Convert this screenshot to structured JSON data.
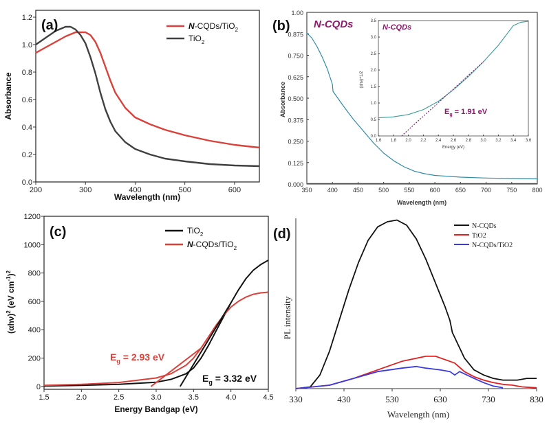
{
  "chart_data": [
    {
      "panel": "(a)",
      "type": "line",
      "xlabel": "Wavelength (nm)",
      "ylabel": "Absorbance",
      "xlim": [
        200,
        650
      ],
      "ylim": [
        0.0,
        1.25
      ],
      "xticks": [
        "200",
        "300",
        "400",
        "500",
        "600"
      ],
      "yticks": [
        "0.0",
        "0.2",
        "0.4",
        "0.6",
        "0.8",
        "1.0",
        "1.2"
      ],
      "legend": {
        "position": "top-right",
        "items": [
          {
            "label_prefix": "N",
            "label": "-CQDs/TiO",
            "sub": "2"
          },
          {
            "label_prefix": "",
            "label": "TiO",
            "sub": "2"
          }
        ]
      },
      "series": [
        {
          "name": "N-CQDs/TiO2",
          "color": "#d9413b",
          "x": [
            200,
            220,
            240,
            260,
            280,
            300,
            310,
            320,
            330,
            340,
            350,
            360,
            380,
            400,
            430,
            460,
            500,
            550,
            600,
            650
          ],
          "y": [
            0.94,
            0.98,
            1.02,
            1.06,
            1.09,
            1.09,
            1.07,
            1.02,
            0.94,
            0.84,
            0.74,
            0.65,
            0.54,
            0.47,
            0.42,
            0.38,
            0.34,
            0.3,
            0.27,
            0.25
          ]
        },
        {
          "name": "TiO2",
          "color": "#404040",
          "x": [
            200,
            220,
            240,
            260,
            270,
            280,
            290,
            300,
            310,
            320,
            330,
            340,
            350,
            360,
            380,
            400,
            430,
            460,
            500,
            550,
            600,
            650
          ],
          "y": [
            1.0,
            1.05,
            1.1,
            1.13,
            1.13,
            1.11,
            1.07,
            1.01,
            0.91,
            0.79,
            0.65,
            0.53,
            0.44,
            0.37,
            0.29,
            0.24,
            0.2,
            0.17,
            0.15,
            0.13,
            0.12,
            0.115
          ]
        }
      ]
    },
    {
      "panel": "(b)",
      "type": "line",
      "title": "N-CQDs",
      "title_prefix": "N",
      "title_rest": "-CQDs",
      "xlabel": "Wavelength (nm)",
      "ylabel": "Absorbance",
      "xlim": [
        350,
        800
      ],
      "ylim": [
        0.0,
        1.0
      ],
      "xticks": [
        "350",
        "400",
        "450",
        "500",
        "550",
        "600",
        "650",
        "700",
        "750",
        "800"
      ],
      "yticks": [
        "0.000",
        "0.125",
        "0.250",
        "0.375",
        "0.500",
        "0.625",
        "0.750",
        "0.875",
        "1.00"
      ],
      "series": [
        {
          "name": "N-CQDs",
          "color": "#2f8aa8",
          "x": [
            350,
            360,
            370,
            380,
            390,
            400,
            401,
            420,
            440,
            460,
            480,
            500,
            520,
            540,
            560,
            580,
            600,
            650,
            700,
            750,
            800
          ],
          "y": [
            0.88,
            0.85,
            0.8,
            0.74,
            0.67,
            0.58,
            0.54,
            0.46,
            0.38,
            0.31,
            0.24,
            0.18,
            0.135,
            0.1,
            0.075,
            0.06,
            0.05,
            0.04,
            0.035,
            0.032,
            0.03
          ]
        },
        {
          "name": "baseline",
          "color": "#555555",
          "x": [
            350,
            800
          ],
          "y": [
            0.003,
            0.003
          ]
        }
      ],
      "inset": {
        "title_prefix": "N",
        "title_rest": "-CQDs",
        "xlabel": "Energy (eV)",
        "ylabel": "(αhν)^1/2",
        "xlim": [
          1.6,
          3.6
        ],
        "ylim": [
          0.0,
          3.5
        ],
        "xticks": [
          "1.6",
          "1.8",
          "2.0",
          "2.2",
          "2.4",
          "2.6",
          "2.8",
          "3.0",
          "3.2",
          "3.4",
          "3.6"
        ],
        "yticks": [
          "0.0",
          "0.5",
          "1.0",
          "1.5",
          "2.0",
          "2.5",
          "3.0",
          "3.5"
        ],
        "annotation": "1.91 eV",
        "series": [
          {
            "name": "curve",
            "color": "#3a9a9a",
            "x": [
              1.6,
              1.8,
              2.0,
              2.2,
              2.4,
              2.6,
              2.8,
              3.0,
              3.2,
              3.3,
              3.4,
              3.5,
              3.6
            ],
            "y": [
              0.55,
              0.58,
              0.65,
              0.8,
              1.05,
              1.4,
              1.8,
              2.25,
              2.75,
              3.05,
              3.35,
              3.45,
              3.48
            ]
          },
          {
            "name": "tangent",
            "color": "#7a2a7a",
            "x": [
              1.91,
              3.0
            ],
            "y": [
              0.0,
              2.25
            ]
          }
        ]
      }
    },
    {
      "panel": "(c)",
      "type": "line",
      "xlabel": "Energy Bandgap (eV)",
      "ylabel": "(αhν)2 (eV cm-1)2",
      "xlim": [
        1.5,
        4.5
      ],
      "ylim": [
        -20,
        1200
      ],
      "xticks": [
        "1.5",
        "2.0",
        "2.5",
        "3.0",
        "3.5",
        "4.0",
        "4.5"
      ],
      "yticks": [
        "0",
        "200",
        "400",
        "600",
        "800",
        "1000",
        "1200"
      ],
      "legend": {
        "position": "top-right",
        "items": [
          {
            "label_prefix": "",
            "label": "TiO",
            "sub": "2"
          },
          {
            "label_prefix": "N",
            "label": "-CQDs/TiO",
            "sub": "2"
          }
        ]
      },
      "annotations": [
        {
          "text": "2.93 eV",
          "color": "#d9413b"
        },
        {
          "text": "3.32 eV",
          "color": "#111111"
        }
      ],
      "series": [
        {
          "name": "TiO2",
          "color": "#111111",
          "x": [
            1.5,
            2.0,
            2.5,
            3.0,
            3.2,
            3.4,
            3.5,
            3.6,
            3.7,
            3.8,
            3.9,
            4.0,
            4.1,
            4.2,
            4.3,
            4.4,
            4.5
          ],
          "y": [
            3,
            8,
            15,
            30,
            50,
            90,
            130,
            200,
            290,
            390,
            490,
            590,
            680,
            760,
            820,
            860,
            890
          ]
        },
        {
          "name": "N-CQDs/TiO2",
          "color": "#d9413b",
          "x": [
            1.5,
            2.0,
            2.5,
            3.0,
            3.2,
            3.4,
            3.5,
            3.6,
            3.7,
            3.8,
            3.9,
            4.0,
            4.1,
            4.2,
            4.3,
            4.4,
            4.5
          ],
          "y": [
            8,
            15,
            28,
            60,
            90,
            150,
            200,
            270,
            350,
            430,
            500,
            560,
            600,
            630,
            650,
            660,
            665
          ]
        },
        {
          "name": "tangent-NCQD",
          "color": "#d9413b",
          "x": [
            2.93,
            3.6
          ],
          "y": [
            0,
            270
          ]
        },
        {
          "name": "tangent-TiO2",
          "color": "#111111",
          "x": [
            3.32,
            4.0
          ],
          "y": [
            0,
            590
          ]
        }
      ]
    },
    {
      "panel": "(d)",
      "type": "line",
      "xlabel": "Wavelength (nm)",
      "ylabel": "PL intensity",
      "xlim": [
        330,
        830
      ],
      "ylim": [
        0,
        1.0
      ],
      "xticks": [
        "330",
        "430",
        "530",
        "630",
        "730",
        "830"
      ],
      "legend": {
        "position": "top-right",
        "items": [
          {
            "label": "N-CQDs"
          },
          {
            "label": "TiO2"
          },
          {
            "label": "N-CQDs/TiO2"
          }
        ]
      },
      "series": [
        {
          "name": "N-CQDs",
          "color": "#111111",
          "x": [
            330,
            360,
            380,
            400,
            420,
            440,
            460,
            480,
            500,
            520,
            540,
            560,
            580,
            600,
            620,
            640,
            650,
            655,
            660,
            680,
            700,
            720,
            740,
            760,
            790,
            810,
            830
          ],
          "y": [
            0.0,
            0.01,
            0.08,
            0.22,
            0.4,
            0.58,
            0.74,
            0.87,
            0.95,
            0.98,
            0.99,
            0.96,
            0.88,
            0.76,
            0.62,
            0.48,
            0.4,
            0.33,
            0.3,
            0.18,
            0.11,
            0.08,
            0.06,
            0.05,
            0.05,
            0.06,
            0.06
          ]
        },
        {
          "name": "TiO2",
          "color": "#e02020",
          "x": [
            330,
            400,
            450,
            500,
            550,
            600,
            620,
            650,
            660,
            680,
            700,
            720,
            740,
            760,
            780,
            800,
            830
          ],
          "y": [
            0.0,
            0.02,
            0.06,
            0.11,
            0.16,
            0.19,
            0.19,
            0.16,
            0.15,
            0.1,
            0.07,
            0.05,
            0.035,
            0.025,
            0.02,
            0.01,
            0.005
          ]
        },
        {
          "name": "N-CQDs/TiO2",
          "color": "#3a3ae0",
          "x": [
            330,
            400,
            450,
            500,
            550,
            580,
            600,
            630,
            650,
            660,
            670,
            700,
            720,
            740,
            760
          ],
          "y": [
            0.0,
            0.02,
            0.06,
            0.1,
            0.12,
            0.13,
            0.12,
            0.11,
            0.1,
            0.08,
            0.1,
            0.06,
            0.035,
            0.015,
            0.005
          ]
        }
      ]
    }
  ]
}
